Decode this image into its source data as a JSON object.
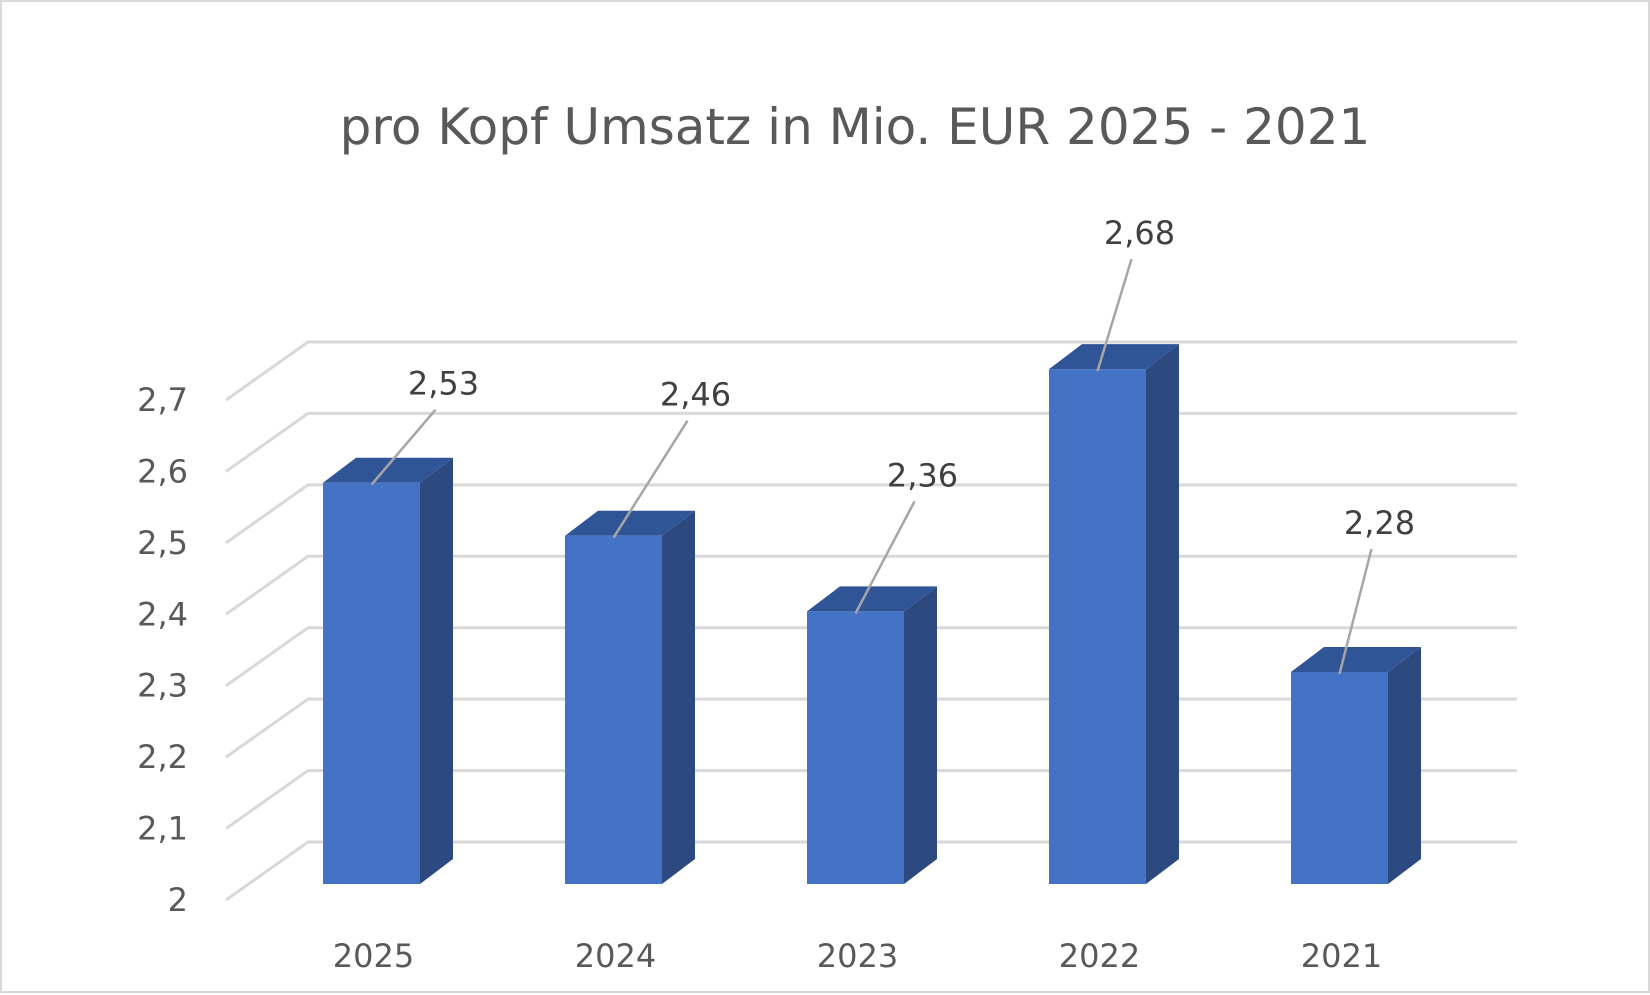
{
  "chart_data": {
    "type": "bar",
    "title": "pro Kopf Umsatz in Mio. EUR 2025 - 2021",
    "categories": [
      "2025",
      "2024",
      "2023",
      "2022",
      "2021"
    ],
    "values": [
      2.53,
      2.46,
      2.36,
      2.68,
      2.28
    ],
    "data_labels": [
      "2,53",
      "2,46",
      "2,36",
      "2,68",
      "2,28"
    ],
    "ylim": [
      2,
      2.7
    ],
    "yticks": [
      2,
      2.1,
      2.2,
      2.3,
      2.4,
      2.5,
      2.6,
      2.7
    ],
    "ytick_labels": [
      "2",
      "2,1",
      "2,2",
      "2,3",
      "2,4",
      "2,5",
      "2,6",
      "2,7"
    ],
    "xlabel": "",
    "ylabel": "",
    "grid": true,
    "legend": "none",
    "style": "3d-column",
    "colors": {
      "bar_front": "#4472c4",
      "bar_side": "#2c4a80",
      "bar_top": "#2f5597",
      "text": "#595959",
      "grid": "#d9d9d9"
    }
  }
}
